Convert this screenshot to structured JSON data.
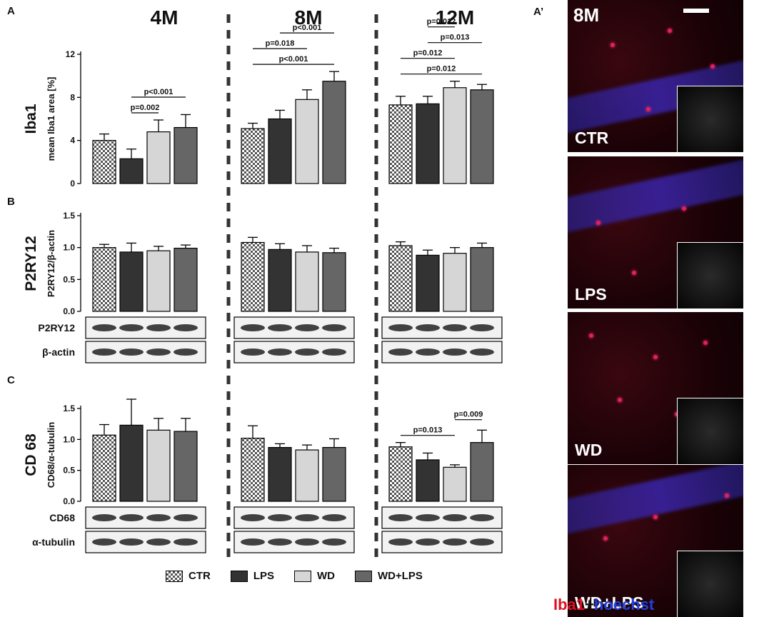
{
  "panel_labels": {
    "a": "A",
    "b": "B",
    "c": "C",
    "aprime": "A’"
  },
  "timepoints": [
    "4M",
    "8M",
    "12M"
  ],
  "groups": [
    "CTR",
    "LPS",
    "WD",
    "WD+LPS"
  ],
  "group_styles": {
    "CTR": "checker",
    "LPS": "#333333",
    "WD": "#d6d6d6",
    "WD+LPS": "#666666"
  },
  "chart_data": [
    {
      "type": "bar",
      "panel": "A",
      "side_label": "Iba1",
      "ylabel": "mean Iba1 area [%]",
      "ylim": [
        0,
        12
      ],
      "yticks": [
        "0",
        "4",
        "8",
        "12"
      ],
      "categories": [
        "4M",
        "8M",
        "12M"
      ],
      "series": [
        {
          "name": "CTR",
          "values": [
            4.0,
            5.1,
            7.3
          ],
          "errors": [
            0.6,
            0.5,
            0.8
          ]
        },
        {
          "name": "LPS",
          "values": [
            2.3,
            6.0,
            7.4
          ],
          "errors": [
            0.9,
            0.8,
            0.7
          ]
        },
        {
          "name": "WD",
          "values": [
            4.8,
            7.8,
            8.9
          ],
          "errors": [
            1.1,
            0.9,
            0.6
          ]
        },
        {
          "name": "WD+LPS",
          "values": [
            5.2,
            9.5,
            8.7
          ],
          "errors": [
            1.2,
            0.9,
            0.5
          ]
        }
      ],
      "significance": [
        {
          "timepoint": "4M",
          "from": "LPS",
          "to": "WD",
          "label": "p=0.002"
        },
        {
          "timepoint": "4M",
          "from": "LPS",
          "to": "WD+LPS",
          "label": "p<0.001"
        },
        {
          "timepoint": "8M",
          "from": "CTR",
          "to": "WD+LPS",
          "label": "p<0.001"
        },
        {
          "timepoint": "8M",
          "from": "CTR",
          "to": "WD",
          "label": "p=0.018"
        },
        {
          "timepoint": "8M",
          "from": "LPS",
          "to": "WD+LPS",
          "label": "p<0.001"
        },
        {
          "timepoint": "12M",
          "from": "CTR",
          "to": "WD+LPS",
          "label": "p=0.012"
        },
        {
          "timepoint": "12M",
          "from": "CTR",
          "to": "WD",
          "label": "p=0.012"
        },
        {
          "timepoint": "12M",
          "from": "LPS",
          "to": "WD+LPS",
          "label": "p=0.013"
        },
        {
          "timepoint": "12M",
          "from": "LPS",
          "to": "WD",
          "label": "p=0.012"
        }
      ]
    },
    {
      "type": "bar",
      "panel": "B",
      "side_label": "P2RY12",
      "ylabel": "P2RY12/β-actin",
      "ylim": [
        0,
        1.5
      ],
      "yticks": [
        "0.0",
        "0.5",
        "1.0",
        "1.5"
      ],
      "categories": [
        "4M",
        "8M",
        "12M"
      ],
      "series": [
        {
          "name": "CTR",
          "values": [
            1.0,
            1.08,
            1.03
          ],
          "errors": [
            0.05,
            0.08,
            0.06
          ]
        },
        {
          "name": "LPS",
          "values": [
            0.93,
            0.97,
            0.88
          ],
          "errors": [
            0.14,
            0.09,
            0.08
          ]
        },
        {
          "name": "WD",
          "values": [
            0.95,
            0.93,
            0.91
          ],
          "errors": [
            0.07,
            0.1,
            0.09
          ]
        },
        {
          "name": "WD+LPS",
          "values": [
            0.99,
            0.92,
            1.0
          ],
          "errors": [
            0.05,
            0.07,
            0.07
          ]
        }
      ],
      "blots": [
        "P2RY12",
        "β-actin"
      ],
      "significance": []
    },
    {
      "type": "bar",
      "panel": "C",
      "side_label": "CD 68",
      "ylabel": "CD68/α-tubulin",
      "ylim": [
        0,
        1.5
      ],
      "yticks": [
        "0.0",
        "0.5",
        "1.0",
        "1.5"
      ],
      "categories": [
        "4M",
        "8M",
        "12M"
      ],
      "series": [
        {
          "name": "CTR",
          "values": [
            1.07,
            1.02,
            0.88
          ],
          "errors": [
            0.17,
            0.2,
            0.07
          ]
        },
        {
          "name": "LPS",
          "values": [
            1.23,
            0.87,
            0.67
          ],
          "errors": [
            0.42,
            0.06,
            0.11
          ]
        },
        {
          "name": "WD",
          "values": [
            1.15,
            0.83,
            0.55
          ],
          "errors": [
            0.19,
            0.08,
            0.04
          ]
        },
        {
          "name": "WD+LPS",
          "values": [
            1.13,
            0.87,
            0.95
          ],
          "errors": [
            0.21,
            0.14,
            0.2
          ]
        }
      ],
      "blots": [
        "CD68",
        "α-tubulin"
      ],
      "significance": [
        {
          "timepoint": "12M",
          "from": "CTR",
          "to": "WD",
          "label": "p=0.013"
        },
        {
          "timepoint": "12M",
          "from": "WD",
          "to": "WD+LPS",
          "label": "p=0.009"
        }
      ]
    }
  ],
  "images": {
    "age": "8M",
    "panels": [
      "CTR",
      "LPS",
      "WD",
      "WD+LPS"
    ]
  },
  "caption": {
    "part1": "Iba1",
    "plus": "+",
    "part2": "hoechst"
  }
}
